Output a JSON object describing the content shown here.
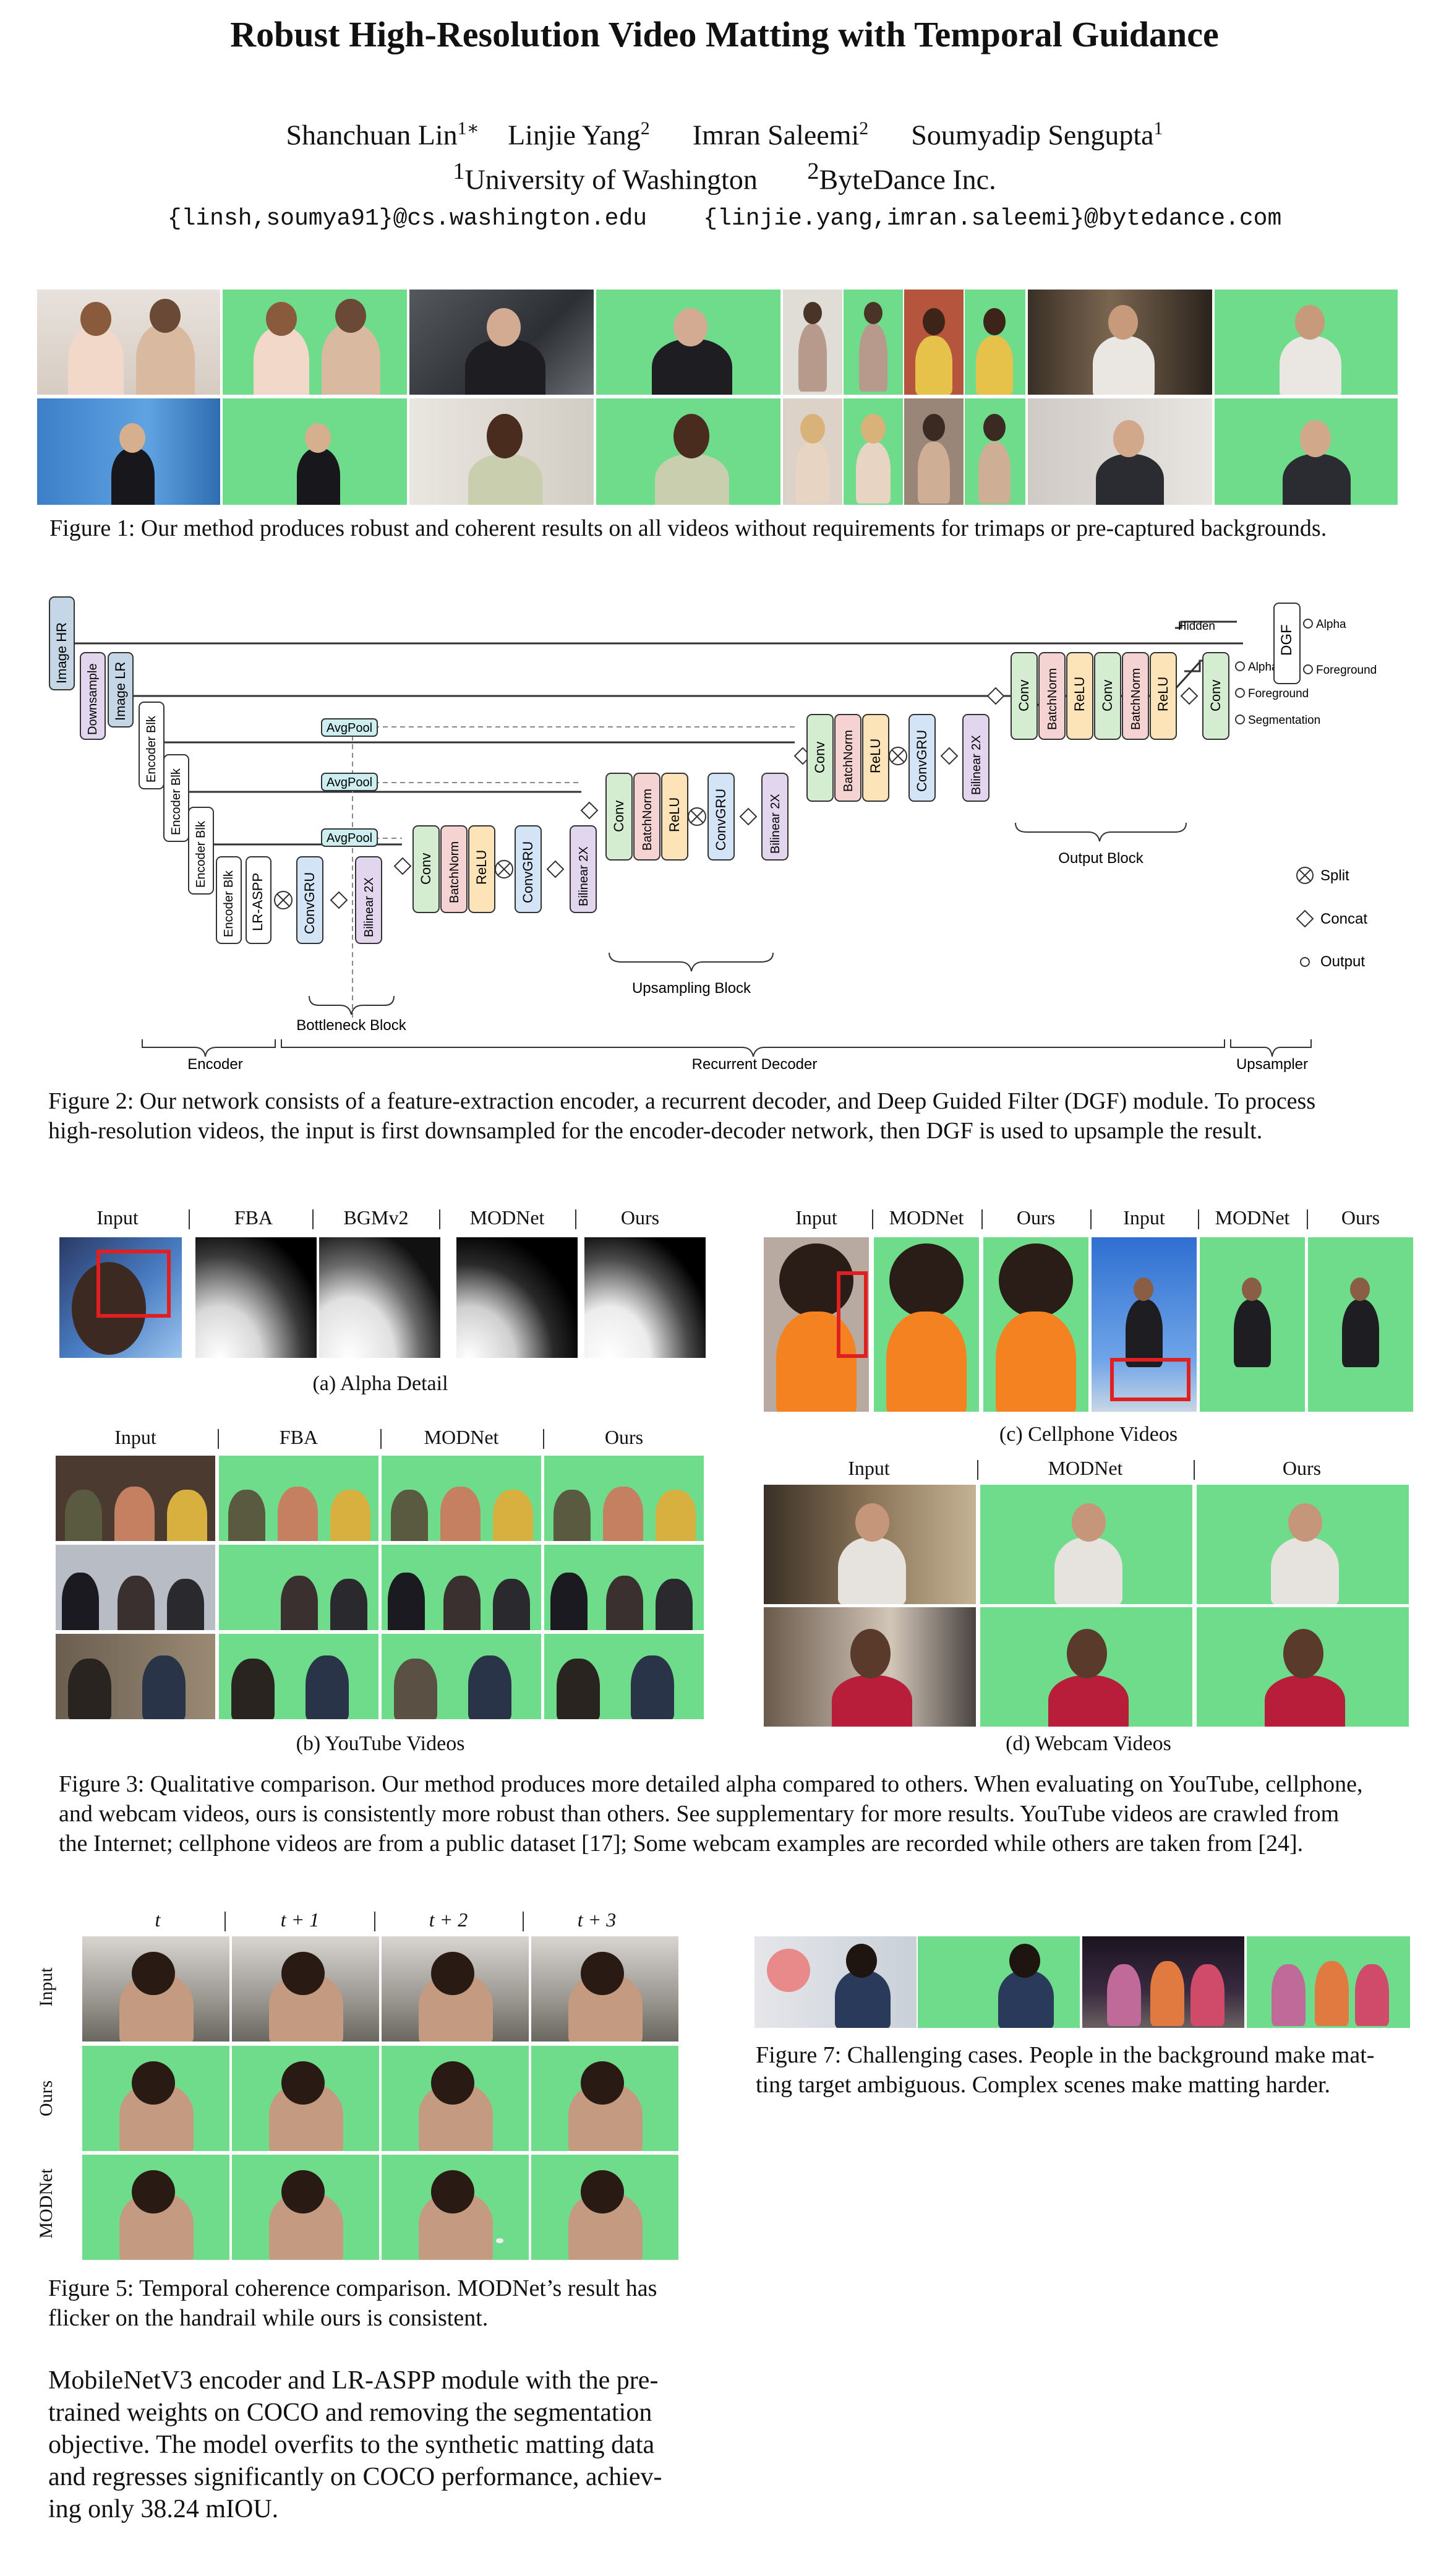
{
  "paper": {
    "title": "Robust High-Resolution Video Matting with Temporal Guidance",
    "authors": [
      {
        "name": "Shanchuan Lin",
        "sup": "1∗"
      },
      {
        "name": "Linjie Yang",
        "sup": "2"
      },
      {
        "name": "Imran Saleemi",
        "sup": "2"
      },
      {
        "name": "Soumyadip Sengupta",
        "sup": "1"
      }
    ],
    "affiliations": [
      {
        "sup": "1",
        "name": "University of Washington"
      },
      {
        "sup": "2",
        "name": "ByteDance Inc."
      }
    ],
    "emails": "{linsh,soumya91}@cs.washington.edu    {linjie.yang,imran.saleemi}@bytedance.com"
  },
  "figure1": {
    "caption": "Figure 1: Our method produces robust and coherent results on all videos without requirements for trimaps or pre-captured backgrounds."
  },
  "figure2": {
    "caption_line1": "Figure 2: Our network consists of a feature-extraction encoder, a recurrent decoder, and Deep Guided Filter (DGF) module. To process",
    "caption_line2": "high-resolution videos, the input is first downsampled for the encoder-decoder network, then DGF is used to upsample the result.",
    "labels": {
      "image_hr": "Image HR",
      "downsample": "Downsample",
      "image_lr": "Image LR",
      "encoder_blk": "Encoder Blk",
      "lr_aspp": "LR-ASPP",
      "avgpool": "AvgPool",
      "conv": "Conv",
      "batchnorm": "BatchNorm",
      "relu": "ReLU",
      "convgru": "ConvGRU",
      "bilinear": "Bilinear 2X",
      "dgf": "DGF",
      "hidden": "Hidden",
      "alpha": "Alpha",
      "foreground": "Foreground",
      "segmentation": "Segmentation",
      "output_block": "Output Block",
      "upsampling_block": "Upsampling Block",
      "bottleneck_block": "Bottleneck Block",
      "encoder": "Encoder",
      "recurrent_decoder": "Recurrent Decoder",
      "upsampler": "Upsampler",
      "legend_split": "Split",
      "legend_concat": "Concat",
      "legend_output": "Output"
    }
  },
  "figure3": {
    "a": {
      "headers": [
        "Input",
        "FBA",
        "BGMv2",
        "MODNet",
        "Ours"
      ],
      "caption": "(a) Alpha Detail"
    },
    "b": {
      "headers": [
        "Input",
        "FBA",
        "MODNet",
        "Ours"
      ],
      "caption": "(b) YouTube Videos"
    },
    "c": {
      "headers": [
        "Input",
        "MODNet",
        "Ours",
        "Input",
        "MODNet",
        "Ours"
      ],
      "caption": "(c) Cellphone Videos"
    },
    "d": {
      "headers": [
        "Input",
        "MODNet",
        "Ours"
      ],
      "caption": "(d) Webcam Videos"
    },
    "caption_line1": "Figure 3: Qualitative comparison. Our method produces more detailed alpha compared to others. When evaluating on YouTube, cellphone,",
    "caption_line2": "and webcam videos, ours is consistently more robust than others. See supplementary for more results. YouTube videos are crawled from",
    "caption_line3": "the Internet; cellphone videos are from a public dataset [17]; Some webcam examples are recorded while others are taken from [24]."
  },
  "figure5": {
    "col_headers": [
      "t",
      "t + 1",
      "t + 2",
      "t + 3"
    ],
    "row_labels": [
      "Input",
      "Ours",
      "MODNet"
    ],
    "caption_line1": "Figure 5: Temporal coherence comparison. MODNet’s result has",
    "caption_line2": "flicker on the handrail while ours is consistent."
  },
  "figure7": {
    "caption_line1": "Figure 7: Challenging cases. People in the background make mat-",
    "caption_line2": "ting target ambiguous. Complex scenes make matting harder."
  },
  "body": {
    "line1": "MobileNetV3 encoder and LR-ASPP module with the pre-",
    "line2": "trained weights on COCO and removing the segmentation",
    "line3": "objective. The model overfits to the synthetic matting data",
    "line4": "and regresses significantly on COCO performance, achiev-",
    "line5": "ing only 38.24 mIOU."
  },
  "colors": {
    "green_screen": "#6edc8a",
    "conv": "#d4ecd0",
    "batchnorm": "#f6d3d3",
    "relu": "#fce3b8",
    "convgru": "#d4e4f7",
    "bilinear": "#e2d6ee",
    "avgpool": "#cdeef0",
    "image": "#c5d6e6"
  }
}
